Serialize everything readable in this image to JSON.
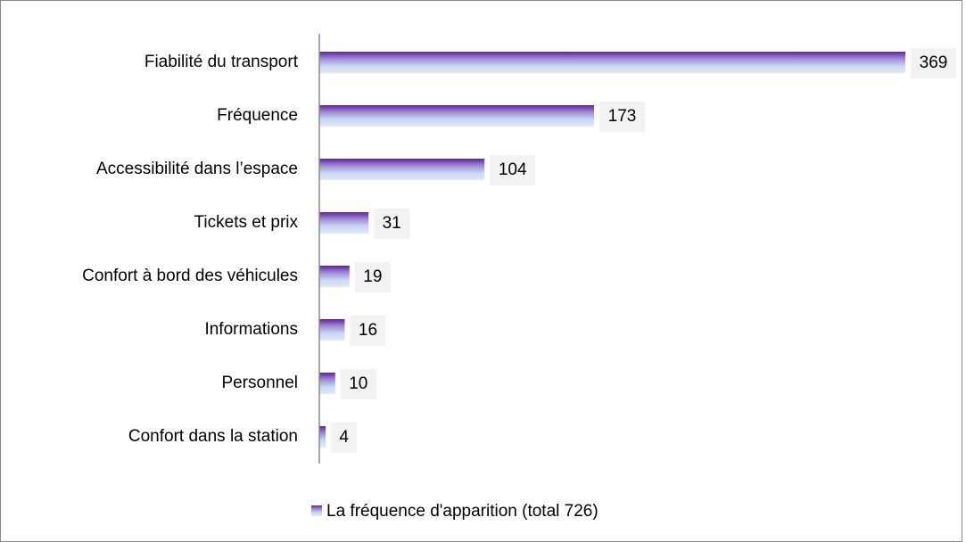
{
  "chart_data": {
    "type": "bar",
    "orientation": "horizontal",
    "categories": [
      "Fiabilité du transport",
      "Fréquence",
      "Accessibilité dans l’espace",
      "Tickets et prix",
      "Confort à bord des véhicules",
      "Informations",
      "Personnel",
      "Confort dans la station"
    ],
    "series": [
      {
        "name": "La fréquence d'apparition (total 726)",
        "color": "#7030a0",
        "values": [
          369,
          173,
          104,
          31,
          19,
          16,
          10,
          4
        ]
      }
    ],
    "legend": "bottom"
  }
}
